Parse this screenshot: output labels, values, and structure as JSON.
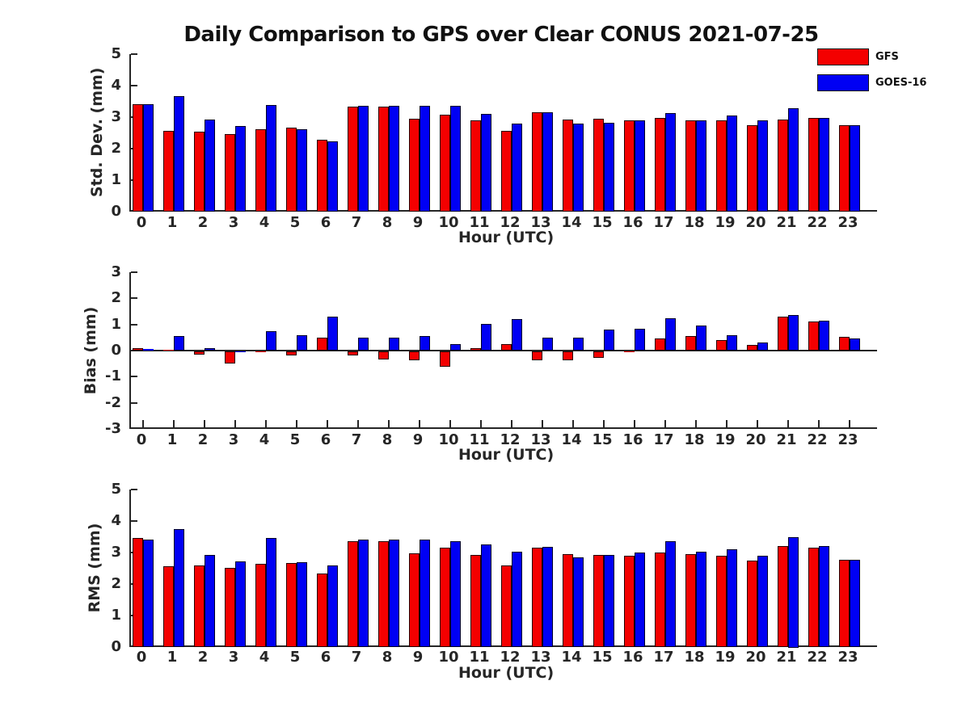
{
  "title": "Daily Comparison to GPS over Clear CONUS 2021-07-25",
  "legend": [
    {
      "label": "GFS",
      "color": "#f40000"
    },
    {
      "label": "GOES-16",
      "color": "#0000f4"
    }
  ],
  "colors": {
    "gfs": "#f40000",
    "goes16": "#0000f4",
    "axis": "#262626",
    "background": "#ffffff"
  },
  "chart_data": [
    {
      "type": "bar",
      "panel": "std-dev",
      "ylabel": "Std. Dev. (mm)",
      "xlabel": "Hour (UTC)",
      "ylim": [
        0,
        5
      ],
      "yticks": [
        0,
        1,
        2,
        3,
        4,
        5
      ],
      "grid": false,
      "legend_position": "outside-top-right",
      "categories": [
        0,
        1,
        2,
        3,
        4,
        5,
        6,
        7,
        8,
        9,
        10,
        11,
        12,
        13,
        14,
        15,
        16,
        17,
        18,
        19,
        20,
        21,
        22,
        23
      ],
      "series": [
        {
          "name": "GFS",
          "color": "#f40000",
          "values": [
            3.42,
            2.56,
            2.55,
            2.46,
            2.61,
            2.66,
            2.28,
            3.33,
            3.34,
            2.95,
            3.08,
            2.89,
            2.57,
            3.15,
            2.92,
            2.95,
            2.9,
            2.97,
            2.9,
            2.9,
            2.74,
            2.93,
            2.97,
            2.74
          ]
        },
        {
          "name": "GOES-16",
          "color": "#0000f4",
          "values": [
            3.42,
            3.67,
            2.92,
            2.71,
            3.38,
            2.61,
            2.24,
            3.35,
            3.36,
            3.35,
            3.35,
            3.1,
            2.8,
            3.15,
            2.8,
            2.81,
            2.9,
            3.13,
            2.9,
            3.05,
            2.9,
            3.28,
            2.97,
            2.74
          ]
        }
      ]
    },
    {
      "type": "bar",
      "panel": "bias",
      "ylabel": "Bias (mm)",
      "xlabel": "Hour (UTC)",
      "ylim": [
        -3,
        3
      ],
      "yticks": [
        -3,
        -2,
        -1,
        0,
        1,
        2,
        3
      ],
      "grid": false,
      "categories": [
        0,
        1,
        2,
        3,
        4,
        5,
        6,
        7,
        8,
        9,
        10,
        11,
        12,
        13,
        14,
        15,
        16,
        17,
        18,
        19,
        20,
        21,
        22,
        23
      ],
      "series": [
        {
          "name": "GFS",
          "color": "#f40000",
          "values": [
            0.08,
            0.02,
            -0.12,
            -0.45,
            -0.04,
            -0.15,
            0.5,
            -0.15,
            -0.3,
            -0.35,
            -0.6,
            0.1,
            0.25,
            -0.35,
            -0.35,
            -0.25,
            -0.03,
            0.45,
            0.55,
            0.4,
            0.22,
            1.3,
            1.1,
            0.52
          ]
        },
        {
          "name": "GOES-16",
          "color": "#0000f4",
          "values": [
            0.05,
            0.55,
            0.1,
            -0.02,
            0.75,
            0.6,
            1.3,
            0.5,
            0.5,
            0.55,
            0.25,
            1.02,
            1.2,
            0.48,
            0.5,
            0.8,
            0.84,
            1.24,
            0.95,
            0.6,
            0.32,
            1.35,
            1.15,
            0.45
          ]
        }
      ]
    },
    {
      "type": "bar",
      "panel": "rms",
      "ylabel": "RMS (mm)",
      "xlabel": "Hour (UTC)",
      "ylim": [
        0,
        5
      ],
      "yticks": [
        0,
        1,
        2,
        3,
        4,
        5
      ],
      "grid": false,
      "categories": [
        0,
        1,
        2,
        3,
        4,
        5,
        6,
        7,
        8,
        9,
        10,
        11,
        12,
        13,
        14,
        15,
        16,
        17,
        18,
        19,
        20,
        21,
        22,
        23
      ],
      "series": [
        {
          "name": "GFS",
          "color": "#f40000",
          "values": [
            3.45,
            2.56,
            2.58,
            2.51,
            2.64,
            2.67,
            2.34,
            3.37,
            3.35,
            2.97,
            3.15,
            2.92,
            2.58,
            3.15,
            2.95,
            2.93,
            2.9,
            3.0,
            2.95,
            2.9,
            2.75,
            3.2,
            3.15,
            2.78
          ]
        },
        {
          "name": "GOES-16",
          "color": "#0000f4",
          "values": [
            3.42,
            3.74,
            2.92,
            2.73,
            3.45,
            2.68,
            2.6,
            3.4,
            3.4,
            3.4,
            3.37,
            3.25,
            3.03,
            3.18,
            2.85,
            2.92,
            3.0,
            3.35,
            3.02,
            3.1,
            2.9,
            3.5,
            3.2,
            2.78
          ]
        }
      ]
    }
  ]
}
